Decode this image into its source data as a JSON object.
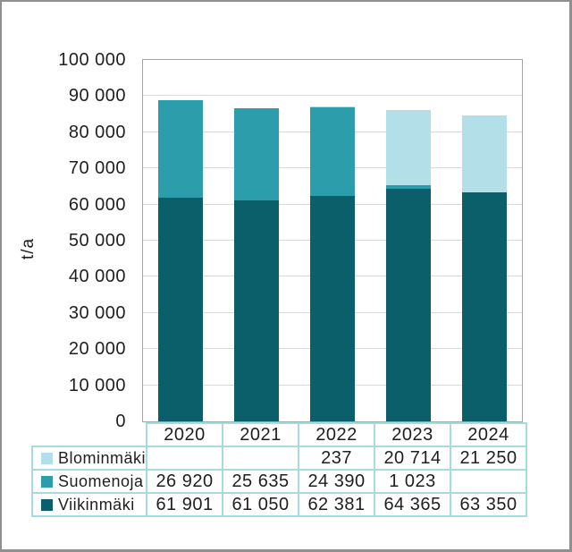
{
  "chart_data": {
    "type": "bar",
    "stacked": true,
    "title": "",
    "ylabel": "t/a",
    "xlabel": "",
    "ylim": [
      0,
      100000
    ],
    "ytick_step": 10000,
    "grid": true,
    "legend_position": "table-left",
    "categories": [
      "2020",
      "2021",
      "2022",
      "2023",
      "2024"
    ],
    "series": [
      {
        "name": "Blominmäki",
        "color": "#b2dfe8",
        "values": [
          null,
          null,
          237,
          20714,
          21250
        ]
      },
      {
        "name": "Suomenoja",
        "color": "#2b9dab",
        "values": [
          26920,
          25635,
          24390,
          1023,
          null
        ]
      },
      {
        "name": "Viikinmäki",
        "color": "#0b5f6a",
        "values": [
          61901,
          61050,
          62381,
          64365,
          63350
        ]
      }
    ]
  },
  "colors": {
    "window_border": "#8f8f8f",
    "plot_border": "#a6a6a6",
    "gridline": "#d9d9d9",
    "table_border": "#a7dbe2",
    "text": "#1f1f1f"
  }
}
